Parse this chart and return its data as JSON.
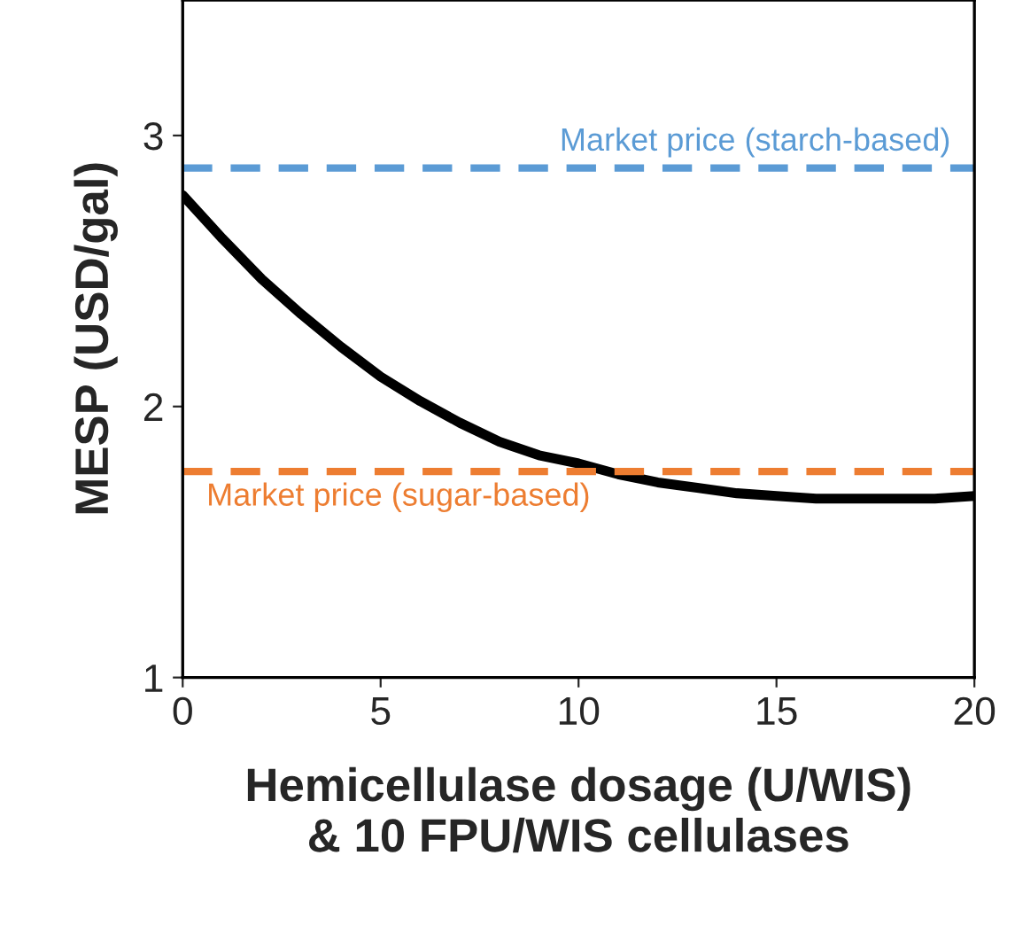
{
  "chart_data": {
    "type": "line",
    "xlabel": "Hemicellulase dosage (U/WIS)\n& 10 FPU/WIS cellulases",
    "ylabel": "MESP (USD/gal)",
    "x": [
      0,
      1,
      2,
      3,
      4,
      5,
      6,
      7,
      8,
      9,
      10,
      11,
      12,
      13,
      14,
      15,
      16,
      17,
      18,
      19,
      20
    ],
    "series": [
      {
        "color": "#000000",
        "values": [
          2.78,
          2.62,
          2.47,
          2.34,
          2.22,
          2.11,
          2.02,
          1.94,
          1.87,
          1.82,
          1.79,
          1.75,
          1.72,
          1.7,
          1.68,
          1.67,
          1.66,
          1.66,
          1.66,
          1.66,
          1.67
        ]
      }
    ],
    "xlim": [
      0,
      20
    ],
    "xticks": [
      0,
      5,
      10,
      15,
      20
    ],
    "ylim": [
      1,
      3.5
    ],
    "yticks": [
      1,
      2,
      3
    ],
    "ref_lines": [
      {
        "axis": "y",
        "value": 2.88,
        "label": "Market price (starch-based)",
        "color": "#5b9bd5",
        "line_style": "dashed"
      },
      {
        "axis": "y",
        "value": 1.76,
        "label": "Market price (sugar-based)",
        "color": "#ed7d31",
        "line_style": "dashed"
      }
    ],
    "grid": false,
    "legend": false,
    "marker": "none",
    "line_style": "solid"
  }
}
